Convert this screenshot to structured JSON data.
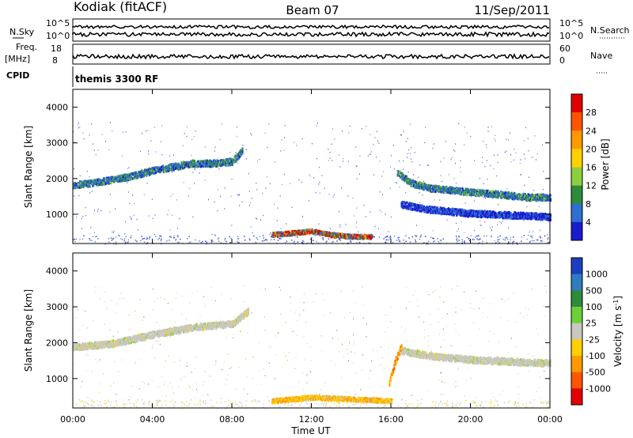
{
  "header": {
    "station": "Kodiak (fitACF)",
    "beam": "Beam 07",
    "date": "11/Sep/2011"
  },
  "status_panels": {
    "nsky_label": "N.Sky",
    "nsearch_label": "N.Search",
    "freq_label": "Freq.",
    "freq_unit": "[MHz]",
    "nave_label": "Nave",
    "cpid_label": "CPID",
    "cpid_value": "themis 3300 RF",
    "noise_ticks_left": [
      "10^5",
      "10^0"
    ],
    "noise_ticks_right": [
      "10^5",
      "10^0"
    ],
    "freq_ticks": [
      "18",
      "8"
    ],
    "nave_ticks": [
      "60",
      "0"
    ]
  },
  "chart_data": [
    {
      "type": "heatmap",
      "title": "",
      "quantity": "Power",
      "ylabel": "Slant Range [km]",
      "xlabel": "",
      "ylim": [
        180,
        4500
      ],
      "y_ticks": [
        "1000",
        "2000",
        "3000",
        "4000"
      ],
      "x_ticks": [
        "00:00",
        "04:00",
        "08:00",
        "12:00",
        "16:00",
        "20:00",
        "00:00"
      ],
      "colorbar": {
        "label": "Power [dB]",
        "ticks": [
          "28",
          "24",
          "20",
          "16",
          "12",
          "8",
          "4"
        ],
        "colors": [
          "#e00000",
          "#ff5500",
          "#ff9900",
          "#ffd000",
          "#8ccf3c",
          "#2e8b3a",
          "#2f6fcf",
          "#1a1acf"
        ]
      },
      "features": [
        {
          "name": "band_morning",
          "t": [
            0.0,
            1.0,
            2.0,
            3.0,
            4.0,
            5.0,
            6.0,
            7.0,
            8.0,
            8.5
          ],
          "range_km": [
            1850,
            1900,
            2000,
            2100,
            2250,
            2350,
            2450,
            2450,
            2500,
            2800
          ],
          "level": "medium"
        },
        {
          "name": "band_evening_upper",
          "t": [
            16.3,
            17.0,
            18.0,
            19.0,
            20.0,
            21.0,
            22.0,
            23.0,
            24.0
          ],
          "range_km": [
            2200,
            1900,
            1750,
            1700,
            1650,
            1600,
            1550,
            1500,
            1500
          ],
          "level": "medium"
        },
        {
          "name": "band_evening_lower",
          "t": [
            16.5,
            18.0,
            20.0,
            22.0,
            24.0
          ],
          "range_km": [
            1300,
            1150,
            1050,
            1000,
            950
          ],
          "level": "low"
        },
        {
          "name": "near_range_echo",
          "t": [
            10.0,
            11.0,
            12.0,
            13.0,
            14.0,
            15.0
          ],
          "range_km": [
            450,
            500,
            550,
            450,
            400,
            400
          ],
          "level": "high"
        }
      ]
    },
    {
      "type": "heatmap",
      "title": "",
      "quantity": "Velocity",
      "ylabel": "Slant Range [km]",
      "xlabel": "Time UT",
      "ylim": [
        180,
        4500
      ],
      "y_ticks": [
        "1000",
        "2000",
        "3000",
        "4000"
      ],
      "x_ticks": [
        "00:00",
        "04:00",
        "08:00",
        "12:00",
        "16:00",
        "20:00",
        "00:00"
      ],
      "colorbar": {
        "label": "Velocity [m s^-1]",
        "ticks": [
          "1000",
          "500",
          "100",
          "25",
          "-25",
          "-100",
          "-500",
          "-1000"
        ],
        "colors": [
          "#1c3fbf",
          "#2f7cbf",
          "#2e8b3a",
          "#6ccf3a",
          "#c8c8c0",
          "#ffd000",
          "#ff9900",
          "#ff5500",
          "#e00000"
        ]
      },
      "features": [
        {
          "name": "gray_band_morning",
          "t": [
            0.0,
            2.0,
            4.0,
            6.0,
            8.0,
            8.8
          ],
          "range_km": [
            1900,
            2000,
            2250,
            2450,
            2550,
            2900
          ],
          "level": "near-zero"
        },
        {
          "name": "gray_band_evening",
          "t": [
            16.5,
            18.0,
            20.0,
            22.0,
            24.0
          ],
          "range_km": [
            1800,
            1650,
            1550,
            1500,
            1450
          ],
          "level": "near-zero"
        },
        {
          "name": "orange_near_range",
          "t": [
            10.0,
            12.0,
            14.0,
            16.0
          ],
          "range_km": [
            400,
            500,
            450,
            400
          ],
          "level": "negative"
        },
        {
          "name": "orange_patch_16",
          "t": [
            15.9,
            16.2,
            16.5
          ],
          "range_km": [
            900,
            1500,
            1900
          ],
          "level": "strong-negative"
        }
      ]
    }
  ]
}
